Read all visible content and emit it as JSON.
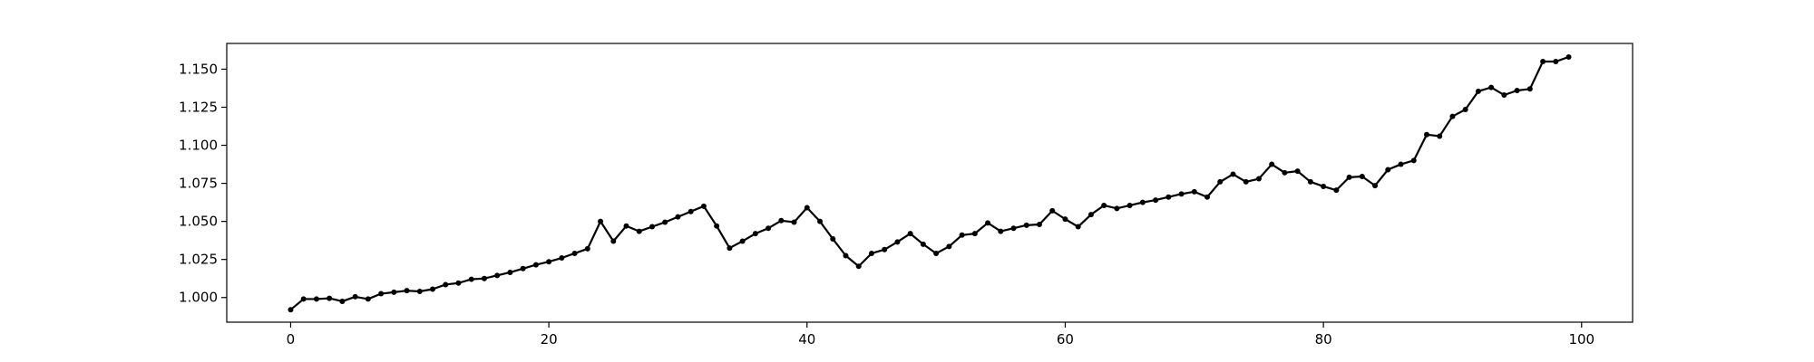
{
  "chart_data": {
    "type": "line",
    "title": "",
    "xlabel": "",
    "ylabel": "",
    "grid": false,
    "xlim": [
      -4.95,
      103.95
    ],
    "ylim": [
      0.9838,
      1.1669
    ],
    "xticks": [
      0,
      20,
      40,
      60,
      80,
      100
    ],
    "xtick_labels": [
      "0",
      "20",
      "40",
      "60",
      "80",
      "100"
    ],
    "yticks": [
      1.0,
      1.025,
      1.05,
      1.075,
      1.1,
      1.125,
      1.15
    ],
    "ytick_labels": [
      "1.000",
      "1.025",
      "1.050",
      "1.075",
      "1.100",
      "1.125",
      "1.150"
    ],
    "series": [
      {
        "color": "#000000",
        "marker": "circle",
        "x": [
          0,
          1,
          2,
          3,
          4,
          5,
          6,
          7,
          8,
          9,
          10,
          11,
          12,
          13,
          14,
          15,
          16,
          17,
          18,
          19,
          20,
          21,
          22,
          23,
          24,
          25,
          26,
          27,
          28,
          29,
          30,
          31,
          32,
          33,
          34,
          35,
          36,
          37,
          38,
          39,
          40,
          41,
          42,
          43,
          44,
          45,
          46,
          47,
          48,
          49,
          50,
          51,
          52,
          53,
          54,
          55,
          56,
          57,
          58,
          59,
          60,
          61,
          62,
          63,
          64,
          65,
          66,
          67,
          68,
          69,
          70,
          71,
          72,
          73,
          74,
          75,
          76,
          77,
          78,
          79,
          80,
          81,
          82,
          83,
          84,
          85,
          86,
          87,
          88,
          89,
          90,
          91,
          92,
          93,
          94,
          95,
          96,
          97,
          98,
          99
        ],
        "values": [
          0.992,
          0.999,
          0.999,
          0.9995,
          0.9975,
          1.0005,
          0.999,
          1.0025,
          1.0035,
          1.0045,
          1.004,
          1.0055,
          1.0085,
          1.0095,
          1.012,
          1.0125,
          1.0145,
          1.0165,
          1.019,
          1.0215,
          1.0235,
          1.026,
          1.029,
          1.032,
          1.05,
          1.037,
          1.047,
          1.0435,
          1.0465,
          1.0495,
          1.053,
          1.0565,
          1.06,
          1.047,
          1.0325,
          1.037,
          1.042,
          1.0455,
          1.0505,
          1.0495,
          1.059,
          1.05,
          1.0385,
          1.0275,
          1.0205,
          1.029,
          1.0315,
          1.0365,
          1.042,
          1.035,
          1.029,
          1.0335,
          1.041,
          1.042,
          1.049,
          1.0435,
          1.0455,
          1.0475,
          1.048,
          1.057,
          1.0515,
          1.0465,
          1.0545,
          1.0605,
          1.0585,
          1.0605,
          1.0625,
          1.064,
          1.066,
          1.068,
          1.0695,
          1.066,
          1.076,
          1.081,
          1.076,
          1.078,
          1.0875,
          1.082,
          1.083,
          1.076,
          1.073,
          1.0705,
          1.079,
          1.0795,
          1.0735,
          1.084,
          1.0875,
          1.09,
          1.107,
          1.106,
          1.119,
          1.1235,
          1.1355,
          1.138,
          1.133,
          1.136,
          1.137,
          1.155,
          1.155,
          1.158
        ]
      }
    ]
  }
}
